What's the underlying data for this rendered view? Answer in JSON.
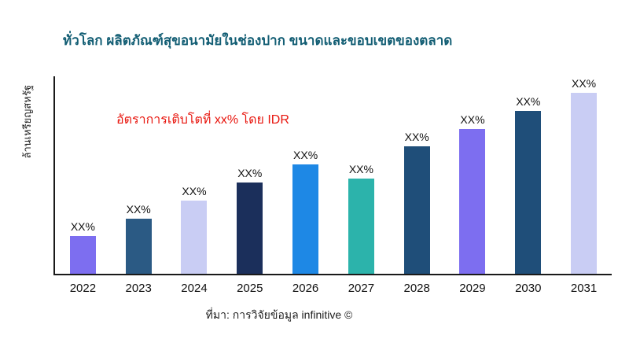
{
  "page": {
    "title": "ทั่วโลก ผลิตภัณฑ์สุขอนามัยในช่องปาก ขนาดและขอบเขตของตลาด",
    "source": "ที่มา: การวิจัยข้อมูล infinitive ©"
  },
  "colors": {
    "title_text": "#135e74",
    "annotation_text": "#e8150d",
    "axis": "#1a1a1a"
  },
  "chart_data": {
    "type": "bar",
    "title": "ทั่วโลก ผลิตภัณฑ์สุขอนามัยในช่องปาก ขนาดและขอบเขตของตลาด",
    "ylabel": "ล้านเหรียญสหรัฐ",
    "xlabel": "",
    "annotation": "อัตราการเติบโตที่ xx% โดย IDR",
    "categories": [
      "2022",
      "2023",
      "2024",
      "2025",
      "2026",
      "2027",
      "2028",
      "2029",
      "2030",
      "2031"
    ],
    "values": [
      48,
      70,
      93,
      116,
      139,
      121,
      162,
      184,
      207,
      230
    ],
    "values_note": "relative bar heights (px); no numeric y-axis scale is shown in the image",
    "bar_labels": [
      "XX%",
      "XX%",
      "XX%",
      "XX%",
      "XX%",
      "XX%",
      "XX%",
      "XX%",
      "XX%",
      "XX%"
    ],
    "bar_colors": [
      "#7d6ef0",
      "#2b5a84",
      "#c9cdf4",
      "#1b2f5b",
      "#1e88e5",
      "#2cb3ab",
      "#1f4e79",
      "#7d6ef0",
      "#1f4e79",
      "#c9cdf4"
    ],
    "grid": false,
    "legend": false,
    "axis_ticks_y": []
  }
}
